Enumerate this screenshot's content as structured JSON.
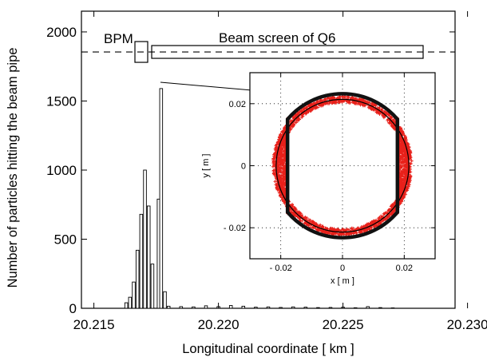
{
  "chart_data": {
    "type": "bar",
    "xlabel": "Longitudinal coordinate [ km ]",
    "ylabel": "Number of particles hitting the beam pipe",
    "xlim": [
      20.2145,
      20.2295
    ],
    "ylim": [
      0,
      2150
    ],
    "xticks": [
      "20.215",
      "20.220",
      "20.225",
      "20.230"
    ],
    "xtick_values": [
      20.215,
      20.22,
      20.225,
      20.23
    ],
    "yticks": [
      "0",
      "500",
      "1000",
      "1500",
      "2000"
    ],
    "ytick_values": [
      0,
      500,
      1000,
      1500,
      2000
    ],
    "bars": {
      "x": [
        20.2163,
        20.21645,
        20.2166,
        20.21675,
        20.2169,
        20.21705,
        20.2172,
        20.21735,
        20.2176,
        20.2177,
        20.21785,
        20.218,
        20.2185,
        20.219,
        20.2195,
        20.22,
        20.2205,
        20.221,
        20.2215,
        20.222,
        20.2225,
        20.223,
        20.2235,
        20.224,
        20.2245,
        20.225,
        20.2255,
        20.226,
        20.2265,
        20.227
      ],
      "values": [
        40,
        80,
        190,
        420,
        680,
        1000,
        740,
        320,
        790,
        1590,
        120,
        15,
        12,
        10,
        18,
        12,
        20,
        15,
        8,
        10,
        6,
        10,
        8,
        5,
        6,
        8,
        4,
        12,
        5,
        3
      ]
    },
    "annotations": {
      "bpm_label": "BPM",
      "beam_screen_label": "Beam screen of Q6",
      "dashed_line_y": 1855
    },
    "inset": {
      "type": "scatter",
      "xlabel": "x [ m ]",
      "ylabel": "y [ m ]",
      "xlim": [
        -0.03,
        0.03
      ],
      "ylim": [
        -0.03,
        0.03
      ],
      "xticks": [
        "- 0.02",
        "0",
        "0.02"
      ],
      "xtick_values": [
        -0.02,
        0,
        0.02
      ],
      "yticks": [
        "0.02",
        "0",
        "- 0.02"
      ],
      "ytick_values": [
        0.02,
        0,
        -0.02
      ],
      "grid": true,
      "hit_color": "#e8201a",
      "pipe_radius": 0.0215,
      "screen_half_width": 0.0178,
      "screen_radius": 0.0233
    }
  }
}
